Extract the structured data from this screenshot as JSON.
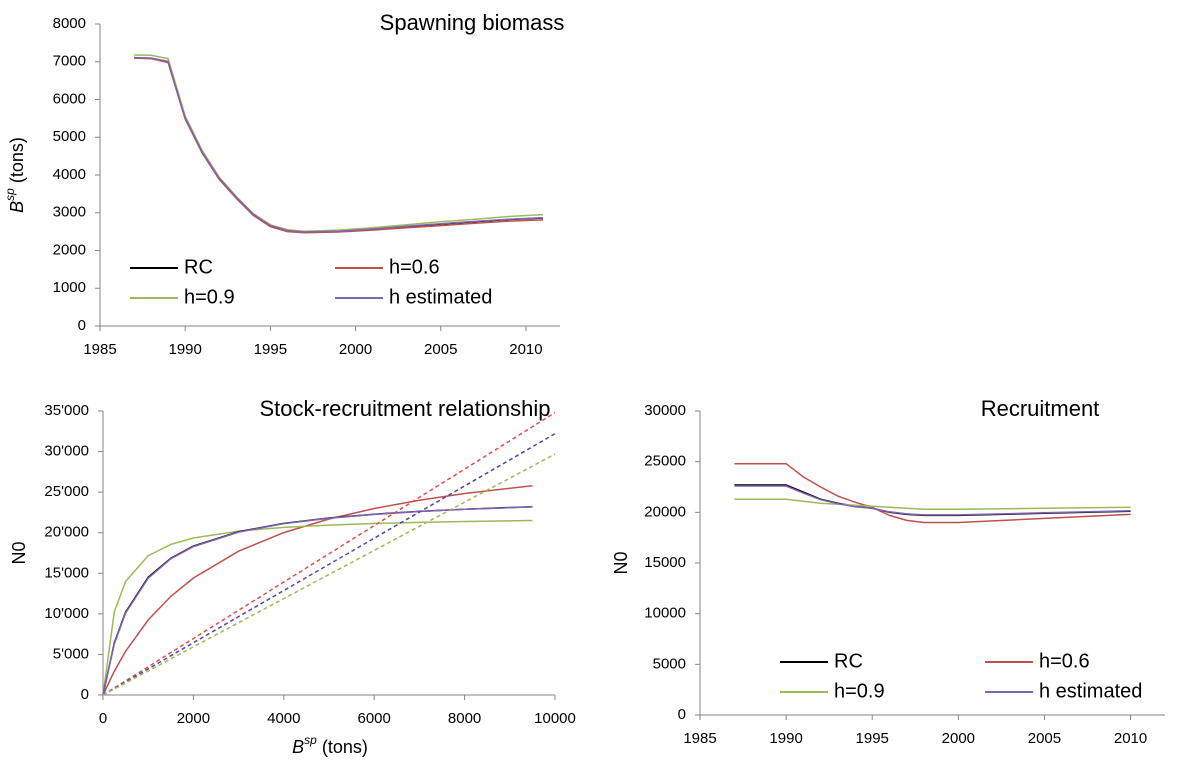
{
  "chart_data": [
    {
      "type": "line",
      "title": "Spawning biomass",
      "y_label": {
        "base": "B",
        "sup": "sp",
        "unit": " (tons)"
      },
      "x": [
        1987,
        1988,
        1989,
        1990,
        1991,
        1992,
        1993,
        1994,
        1995,
        1996,
        1997,
        1999,
        2001,
        2003,
        2005,
        2007,
        2009,
        2011
      ],
      "series": [
        {
          "name": "RC",
          "color": "#000000",
          "values": [
            7100,
            7090,
            7000,
            5500,
            4600,
            3900,
            3400,
            2950,
            2650,
            2520,
            2480,
            2500,
            2560,
            2630,
            2700,
            2760,
            2820,
            2860
          ]
        },
        {
          "name": "h=0.6",
          "color": "#c0504d",
          "values": [
            7100,
            7080,
            6980,
            5480,
            4580,
            3880,
            3380,
            2930,
            2630,
            2500,
            2470,
            2490,
            2540,
            2600,
            2660,
            2720,
            2780,
            2810
          ]
        },
        {
          "name": "h=0.9",
          "color": "#9bbb59",
          "values": [
            7180,
            7170,
            7080,
            5560,
            4650,
            3940,
            3430,
            2980,
            2680,
            2550,
            2510,
            2540,
            2600,
            2680,
            2760,
            2830,
            2900,
            2950
          ]
        },
        {
          "name": "h estimated",
          "color": "#7f63b5",
          "values": [
            7110,
            7100,
            7010,
            5510,
            4610,
            3910,
            3410,
            2960,
            2660,
            2530,
            2490,
            2510,
            2570,
            2640,
            2710,
            2770,
            2830,
            2870
          ]
        }
      ],
      "xlim": [
        1985,
        2012
      ],
      "xticks": [
        1985,
        1990,
        1995,
        2000,
        2005,
        2010
      ],
      "ylim": [
        0,
        8000
      ],
      "yticks": [
        0,
        1000,
        2000,
        3000,
        4000,
        5000,
        6000,
        7000,
        8000
      ],
      "grid": false,
      "legend": "bottom"
    },
    {
      "type": "line",
      "title": "Stock-recruitment relationship",
      "y_label": "N0",
      "x_label": {
        "base": "B",
        "sup": "sp",
        "unit": " (tons)"
      },
      "x": [
        0,
        250,
        500,
        1000,
        1500,
        2000,
        3000,
        4000,
        5000,
        6000,
        7000,
        8000,
        9500,
        10000
      ],
      "series": [
        {
          "color": "#c0504d",
          "values": [
            0,
            2936,
            5388,
            9250,
            12155,
            14420,
            17720,
            20010,
            21690,
            22980,
            24000,
            24830,
            25800,
            null
          ]
        },
        {
          "color": "#9bbb59",
          "values": [
            0,
            10240,
            14006,
            17164,
            18558,
            19345,
            20200,
            20656,
            20940,
            21134,
            21275,
            21381,
            21500,
            null
          ]
        },
        {
          "color": "#000000",
          "values": [
            0,
            6426,
            10221,
            14500,
            16857,
            18346,
            20124,
            21148,
            21815,
            22282,
            22629,
            22896,
            23200,
            null
          ]
        },
        {
          "color": "#7f63b5",
          "values": [
            0,
            6300,
            10100,
            14400,
            16780,
            18290,
            20080,
            21120,
            21790,
            22260,
            22620,
            22890,
            23180,
            null
          ]
        },
        {
          "color": "#e0504a",
          "dash": true,
          "values": [
            0,
            870,
            1740,
            3480,
            5220,
            6960,
            10440,
            13920,
            17400,
            20880,
            24360,
            27840,
            33060,
            34800
          ]
        },
        {
          "color": "#5a44b0",
          "dash": true,
          "values": [
            0,
            805,
            1610,
            3220,
            4830,
            6440,
            9660,
            12880,
            16100,
            19320,
            22540,
            25760,
            30590,
            32200
          ]
        },
        {
          "color": "#a0b85a",
          "dash": true,
          "values": [
            0,
            742.5,
            1485,
            2970,
            4455,
            5940,
            8910,
            11880,
            14850,
            17820,
            20790,
            23760,
            28215,
            29700
          ]
        }
      ],
      "xlim": [
        0,
        10000
      ],
      "xticks": [
        0,
        2000,
        4000,
        6000,
        8000,
        10000
      ],
      "ylim": [
        0,
        35000
      ],
      "yticks": [
        0,
        {
          "value": 5000,
          "label": "5'000"
        },
        {
          "value": 10000,
          "label": "10'000"
        },
        {
          "value": 15000,
          "label": "15'000"
        },
        {
          "value": 20000,
          "label": "20'000"
        },
        {
          "value": 25000,
          "label": "25'000"
        },
        {
          "value": 30000,
          "label": "30'000"
        },
        {
          "value": 35000,
          "label": "35'000"
        }
      ],
      "grid": false
    },
    {
      "type": "line",
      "title": "Recruitment",
      "y_label": "N0",
      "x": [
        1987,
        1988,
        1989,
        1990,
        1991,
        1992,
        1993,
        1994,
        1995,
        1996,
        1997,
        1998,
        2000,
        2005,
        2010
      ],
      "series": [
        {
          "name": "RC",
          "color": "#000000",
          "values": [
            22700,
            22700,
            22700,
            22700,
            22000,
            21300,
            20900,
            20600,
            20400,
            20000,
            19800,
            19700,
            19700,
            19900,
            20100
          ]
        },
        {
          "name": "h=0.6",
          "color": "#c0504d",
          "values": [
            24800,
            24800,
            24800,
            24800,
            23500,
            22500,
            21600,
            21000,
            20500,
            19700,
            19200,
            19000,
            19000,
            19400,
            19800
          ]
        },
        {
          "name": "h=0.9",
          "color": "#9bbb59",
          "values": [
            21300,
            21300,
            21300,
            21300,
            21100,
            20900,
            20800,
            20700,
            20600,
            20500,
            20400,
            20300,
            20300,
            20400,
            20500
          ]
        },
        {
          "name": "h estimated",
          "color": "#7f63b5",
          "values": [
            22600,
            22600,
            22600,
            22600,
            21900,
            21250,
            20850,
            20550,
            20400,
            20050,
            19850,
            19750,
            19750,
            19950,
            20150
          ]
        }
      ],
      "xlim": [
        1985,
        2012
      ],
      "xticks": [
        1985,
        1990,
        1995,
        2000,
        2005,
        2010
      ],
      "ylim": [
        0,
        30000
      ],
      "yticks": [
        0,
        5000,
        10000,
        15000,
        20000,
        25000,
        30000
      ],
      "grid": false,
      "legend": "bottom"
    }
  ]
}
